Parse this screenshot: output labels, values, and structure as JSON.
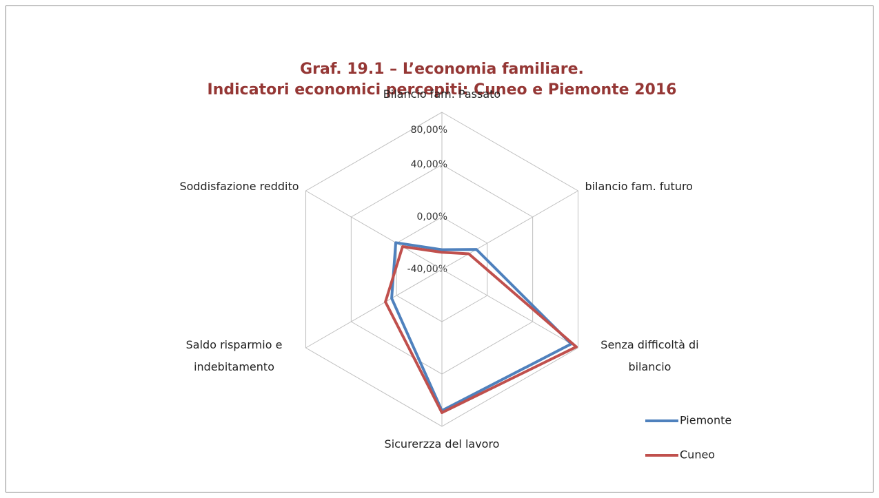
{
  "chart_data": {
    "type": "radar",
    "title": "Graf. 19.1 – L’economia familiare.",
    "subtitle": "Indicatori economici percepiti: Cuneo e Piemonte 2016",
    "categories": [
      "Bilancio fam. Passato",
      "bilancio fam. futuro",
      "Senza difficoltà di\nbilancio",
      "Sicurerzza del lavoro",
      "Saldo risparmio e\nindebitamento",
      "Soddisfazione reddito"
    ],
    "series": [
      {
        "name": "Piemonte",
        "color": "#4f81bd",
        "values": [
          -25,
          -9.6,
          74,
          68,
          4.3,
          0.7
        ]
      },
      {
        "name": "Cuneo",
        "color": "#c0504d",
        "values": [
          -27,
          -16.3,
          78.5,
          69.5,
          9.8,
          -5.3
        ]
      }
    ],
    "ylim": [
      -40,
      80
    ],
    "yticks": [
      {
        "value": -40,
        "label": "-40,00%"
      },
      {
        "value": 0,
        "label": "0,00%"
      },
      {
        "value": 40,
        "label": "40,00%"
      },
      {
        "value": 80,
        "label": "80,00%"
      }
    ],
    "grid": true,
    "legend": "right"
  }
}
